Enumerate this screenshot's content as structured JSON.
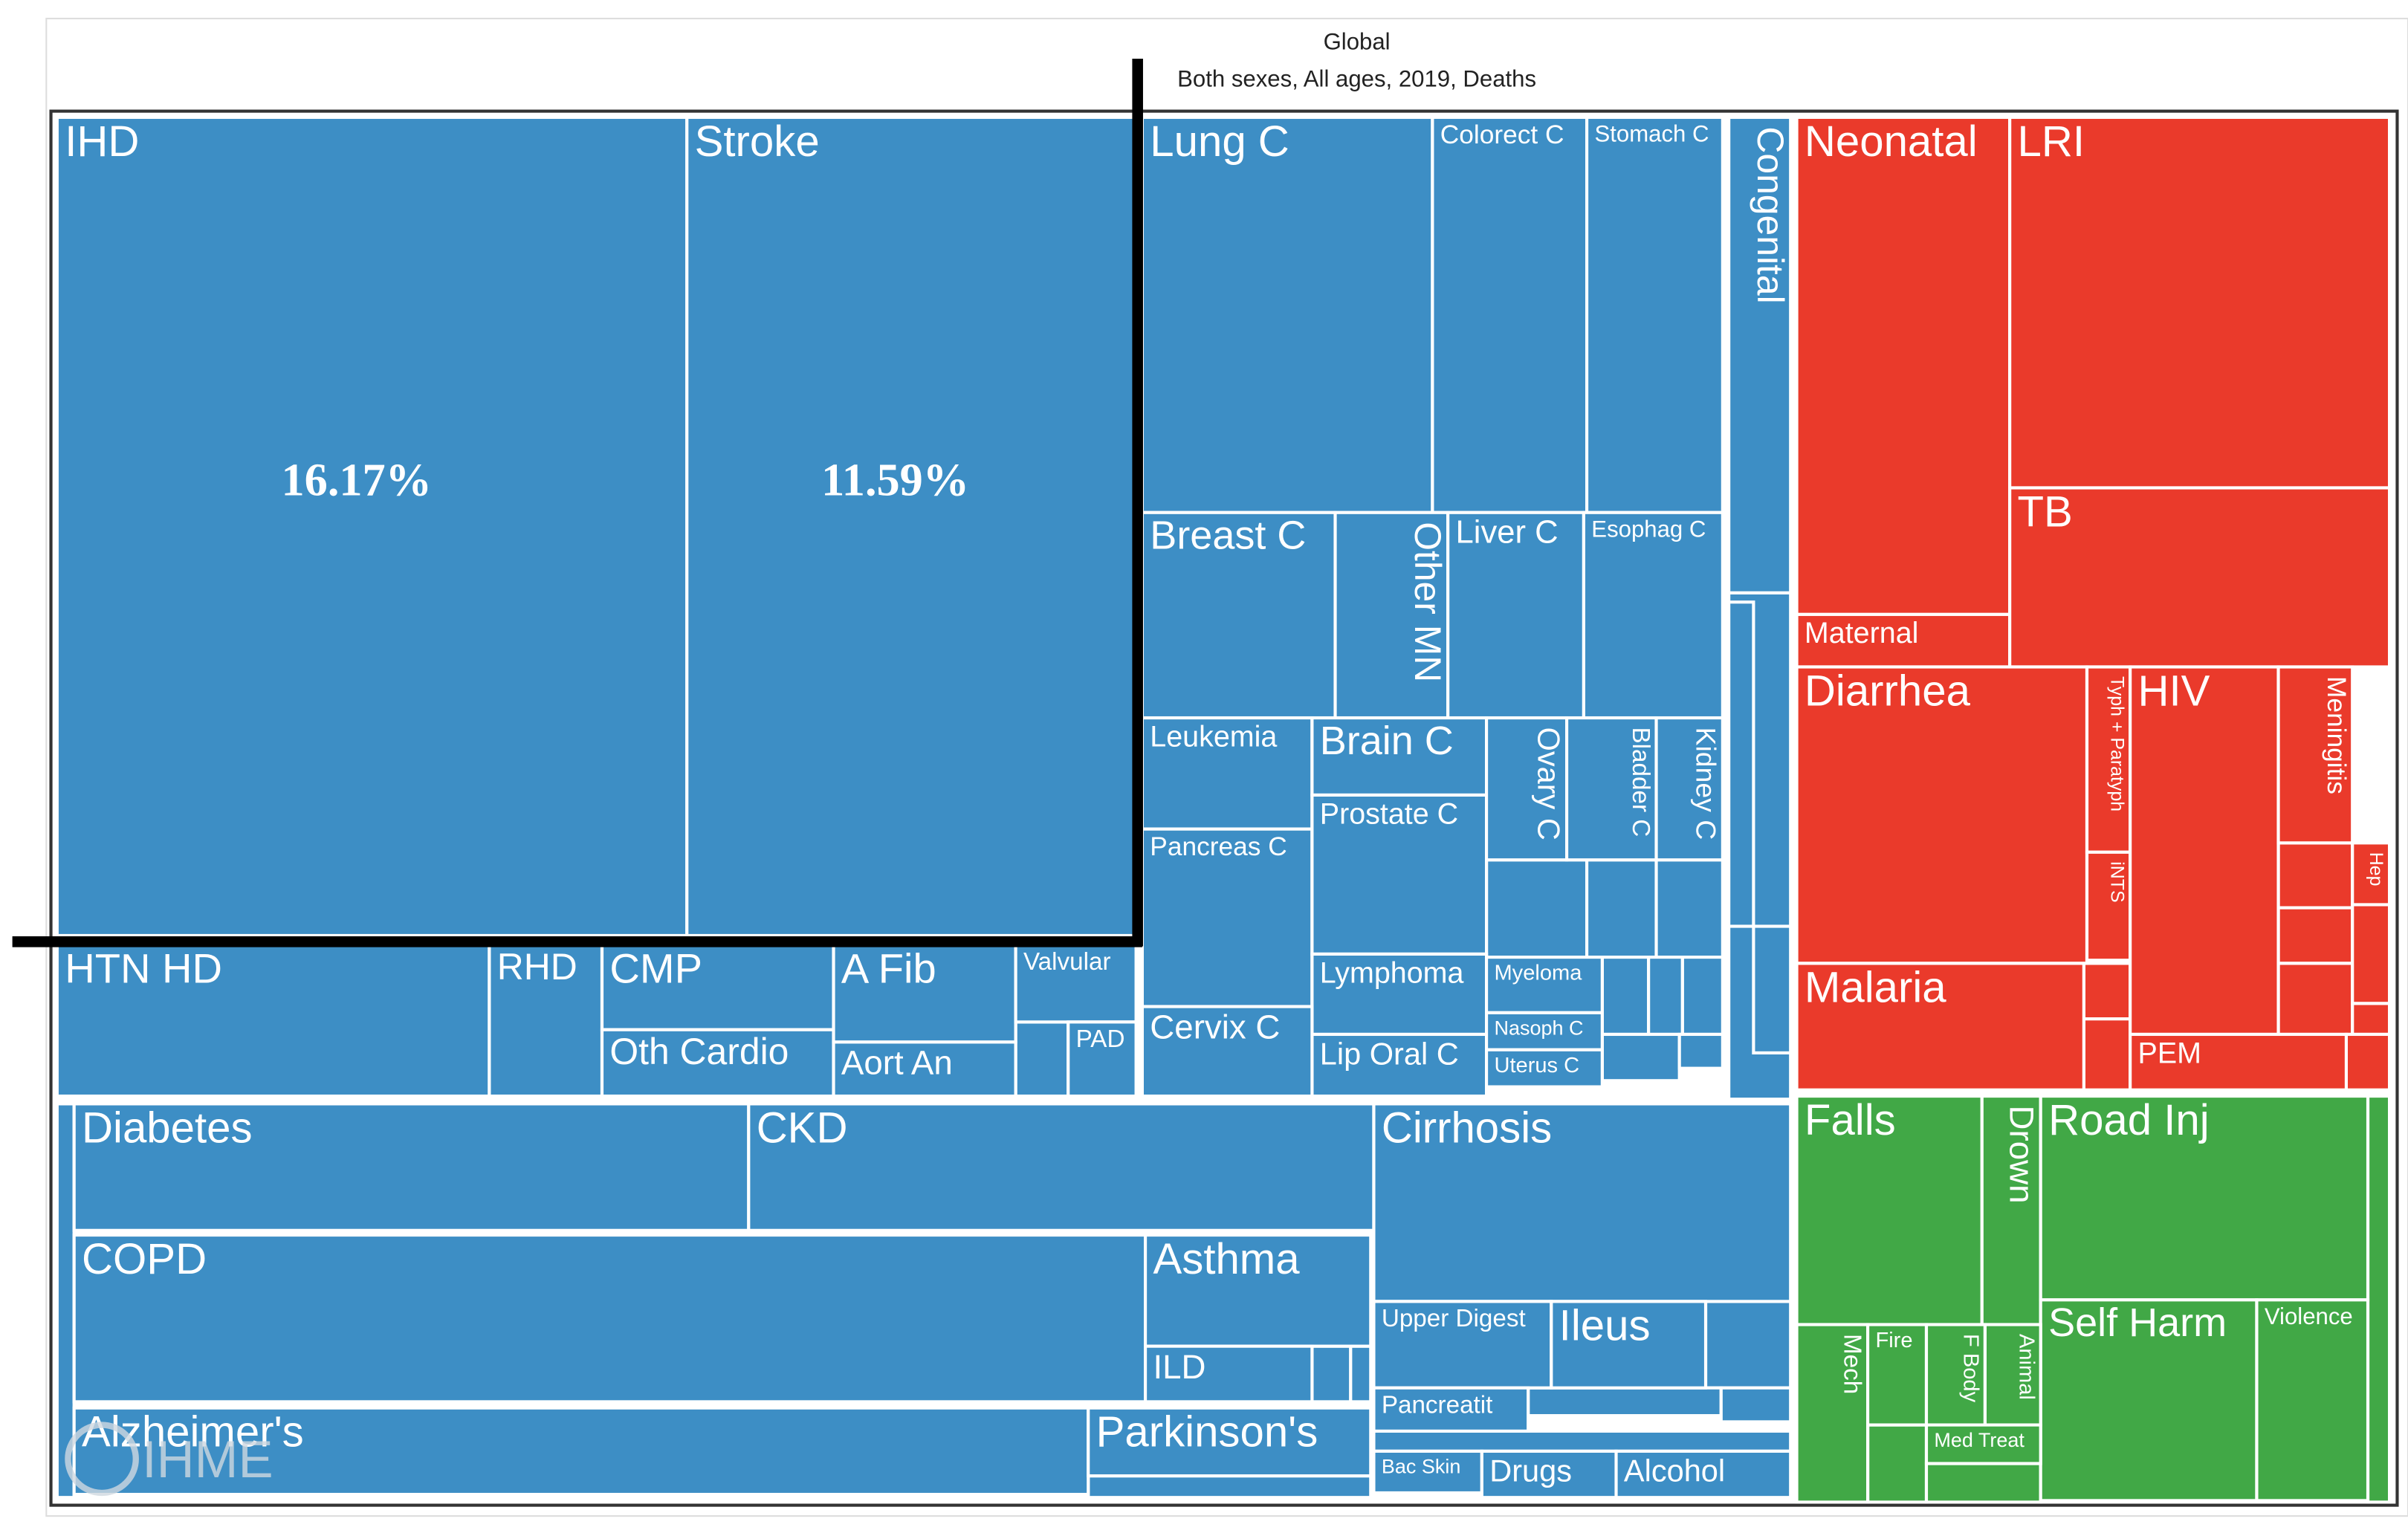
{
  "chart_data": {
    "type": "treemap",
    "title": "Global",
    "subtitle": "Both sexes, All ages, 2019, Deaths",
    "watermark": "IHME",
    "series": [
      {
        "color": "#3d8ec5",
        "cells": [
          {
            "label": "IHD",
            "value": 16.17,
            "value_label": "16.17%"
          },
          {
            "label": "Stroke",
            "value": 11.59,
            "value_label": "11.59%"
          },
          {
            "label": "Lung C"
          },
          {
            "label": "Colorect C"
          },
          {
            "label": "Stomach C"
          },
          {
            "label": "Congenital"
          },
          {
            "label": "Breast C"
          },
          {
            "label": "Other MN"
          },
          {
            "label": "Liver C"
          },
          {
            "label": "Esophag C"
          },
          {
            "label": "Leukemia"
          },
          {
            "label": "Pancreas C"
          },
          {
            "label": "Brain C"
          },
          {
            "label": "Prostate C"
          },
          {
            "label": "Ovary C"
          },
          {
            "label": "Bladder C"
          },
          {
            "label": "Kidney C"
          },
          {
            "label": "Lymphoma"
          },
          {
            "label": "Lip Oral C"
          },
          {
            "label": "Cervix C"
          },
          {
            "label": "Myeloma"
          },
          {
            "label": "Nasoph C"
          },
          {
            "label": "Uterus C"
          },
          {
            "label": "HTN HD"
          },
          {
            "label": "RHD"
          },
          {
            "label": "CMP"
          },
          {
            "label": "Oth Cardio"
          },
          {
            "label": "A Fib"
          },
          {
            "label": "Aort An"
          },
          {
            "label": "Valvular"
          },
          {
            "label": "PAD"
          },
          {
            "label": "Diabetes"
          },
          {
            "label": "CKD"
          },
          {
            "label": "COPD"
          },
          {
            "label": "Asthma"
          },
          {
            "label": "ILD"
          },
          {
            "label": "Alzheimer's"
          },
          {
            "label": "Parkinson's"
          },
          {
            "label": "Cirrhosis"
          },
          {
            "label": "Upper Digest"
          },
          {
            "label": "Ileus"
          },
          {
            "label": "Pancreatit"
          },
          {
            "label": "Bac Skin"
          },
          {
            "label": "Drugs"
          },
          {
            "label": "Alcohol"
          }
        ]
      },
      {
        "color": "#ea3a2b",
        "cells": [
          {
            "label": "Neonatal"
          },
          {
            "label": "LRI"
          },
          {
            "label": "Maternal"
          },
          {
            "label": "TB"
          },
          {
            "label": "Diarrhea"
          },
          {
            "label": "Typh + Paratyph"
          },
          {
            "label": "iNTS"
          },
          {
            "label": "HIV"
          },
          {
            "label": "Meningitis"
          },
          {
            "label": "Hep"
          },
          {
            "label": "Malaria"
          },
          {
            "label": "PEM"
          }
        ]
      },
      {
        "color": "#41a846",
        "cells": [
          {
            "label": "Falls"
          },
          {
            "label": "Drown"
          },
          {
            "label": "Road Inj"
          },
          {
            "label": "Self Harm"
          },
          {
            "label": "Violence"
          },
          {
            "label": "Mech"
          },
          {
            "label": "Fire"
          },
          {
            "label": "F Body"
          },
          {
            "label": "Animal"
          },
          {
            "label": "Med Treat"
          }
        ]
      }
    ]
  }
}
